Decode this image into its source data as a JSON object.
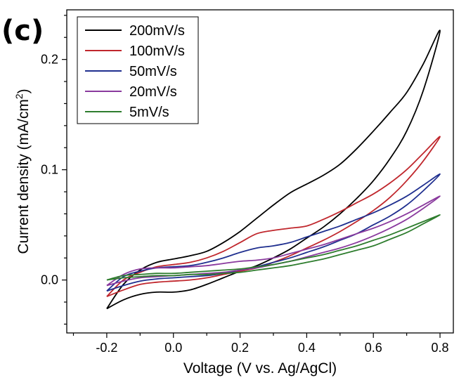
{
  "panel_label": "(c)",
  "chart_data": {
    "type": "line",
    "subtype": "cyclic voltammogram",
    "xlabel": "Voltage (V vs. Ag/AgCl)",
    "ylabel_main": "Current density (mA/cm",
    "ylabel_sup": "2",
    "ylabel_end": ")",
    "xlim": [
      -0.32,
      0.84
    ],
    "ylim": [
      -0.048,
      0.245
    ],
    "xticks": [
      -0.2,
      0.0,
      0.2,
      0.4,
      0.6,
      0.8
    ],
    "xtick_labels": [
      "-0.2",
      "0.0",
      "0.2",
      "0.4",
      "0.6",
      "0.8"
    ],
    "yticks": [
      0.0,
      0.1,
      0.2
    ],
    "ytick_labels": [
      "0.0",
      "0.1",
      "0.2"
    ],
    "grid": false,
    "legend_position": "top-left",
    "series": [
      {
        "name": "200mV/s",
        "color": "#000000",
        "x": [
          -0.2,
          -0.15,
          -0.1,
          -0.05,
          0.0,
          0.05,
          0.1,
          0.15,
          0.2,
          0.25,
          0.3,
          0.35,
          0.4,
          0.45,
          0.5,
          0.55,
          0.6,
          0.65,
          0.7,
          0.75,
          0.8,
          0.75,
          0.7,
          0.65,
          0.6,
          0.55,
          0.5,
          0.45,
          0.4,
          0.35,
          0.3,
          0.25,
          0.2,
          0.15,
          0.1,
          0.05,
          0.0,
          -0.05,
          -0.1,
          -0.15,
          -0.2
        ],
        "y": [
          -0.026,
          -0.018,
          -0.013,
          -0.011,
          -0.011,
          -0.009,
          -0.004,
          0.002,
          0.008,
          0.013,
          0.02,
          0.028,
          0.038,
          0.048,
          0.06,
          0.074,
          0.09,
          0.11,
          0.135,
          0.172,
          0.226,
          0.196,
          0.17,
          0.152,
          0.135,
          0.119,
          0.105,
          0.095,
          0.087,
          0.079,
          0.068,
          0.056,
          0.044,
          0.034,
          0.026,
          0.022,
          0.019,
          0.016,
          0.009,
          -0.004,
          -0.026
        ]
      },
      {
        "name": "100mV/s",
        "color": "#c0272d",
        "x": [
          -0.2,
          -0.15,
          -0.1,
          -0.05,
          0.0,
          0.05,
          0.1,
          0.15,
          0.2,
          0.25,
          0.3,
          0.35,
          0.4,
          0.45,
          0.5,
          0.55,
          0.6,
          0.65,
          0.7,
          0.75,
          0.8,
          0.75,
          0.7,
          0.65,
          0.6,
          0.55,
          0.5,
          0.45,
          0.4,
          0.35,
          0.3,
          0.25,
          0.2,
          0.15,
          0.1,
          0.05,
          0.0,
          -0.05,
          -0.1,
          -0.15,
          -0.2
        ],
        "y": [
          -0.015,
          -0.009,
          -0.004,
          -0.002,
          -0.001,
          0.0,
          0.002,
          0.005,
          0.008,
          0.011,
          0.016,
          0.022,
          0.029,
          0.036,
          0.044,
          0.053,
          0.063,
          0.075,
          0.09,
          0.108,
          0.13,
          0.115,
          0.1,
          0.088,
          0.078,
          0.07,
          0.062,
          0.055,
          0.049,
          0.047,
          0.045,
          0.042,
          0.034,
          0.026,
          0.02,
          0.016,
          0.014,
          0.012,
          0.007,
          0.0,
          -0.015
        ]
      },
      {
        "name": "50mV/s",
        "color": "#1f2f8f",
        "x": [
          -0.2,
          -0.15,
          -0.1,
          -0.05,
          0.0,
          0.05,
          0.1,
          0.15,
          0.2,
          0.25,
          0.3,
          0.35,
          0.4,
          0.45,
          0.5,
          0.55,
          0.6,
          0.65,
          0.7,
          0.75,
          0.8,
          0.75,
          0.7,
          0.65,
          0.6,
          0.55,
          0.5,
          0.45,
          0.4,
          0.35,
          0.3,
          0.25,
          0.2,
          0.15,
          0.1,
          0.05,
          0.0,
          -0.05,
          -0.1,
          -0.15,
          -0.2
        ],
        "y": [
          -0.01,
          -0.005,
          -0.001,
          0.001,
          0.002,
          0.003,
          0.004,
          0.006,
          0.009,
          0.012,
          0.016,
          0.02,
          0.025,
          0.03,
          0.036,
          0.042,
          0.05,
          0.058,
          0.068,
          0.081,
          0.096,
          0.086,
          0.076,
          0.068,
          0.061,
          0.055,
          0.049,
          0.044,
          0.039,
          0.034,
          0.031,
          0.029,
          0.025,
          0.02,
          0.016,
          0.013,
          0.012,
          0.011,
          0.008,
          0.003,
          -0.01
        ]
      },
      {
        "name": "20mV/s",
        "color": "#8a3a9e",
        "x": [
          -0.2,
          -0.15,
          -0.1,
          -0.05,
          0.0,
          0.05,
          0.1,
          0.15,
          0.2,
          0.25,
          0.3,
          0.35,
          0.4,
          0.45,
          0.5,
          0.55,
          0.6,
          0.65,
          0.7,
          0.75,
          0.8,
          0.75,
          0.7,
          0.65,
          0.6,
          0.55,
          0.5,
          0.45,
          0.4,
          0.35,
          0.3,
          0.25,
          0.2,
          0.15,
          0.1,
          0.05,
          0.0,
          -0.05,
          -0.1,
          -0.15,
          -0.2
        ],
        "y": [
          -0.005,
          -0.001,
          0.002,
          0.003,
          0.004,
          0.005,
          0.006,
          0.007,
          0.009,
          0.011,
          0.014,
          0.017,
          0.021,
          0.025,
          0.029,
          0.034,
          0.04,
          0.047,
          0.055,
          0.065,
          0.076,
          0.068,
          0.06,
          0.053,
          0.047,
          0.042,
          0.037,
          0.032,
          0.028,
          0.024,
          0.02,
          0.018,
          0.017,
          0.015,
          0.013,
          0.012,
          0.011,
          0.011,
          0.01,
          0.005,
          -0.005
        ]
      },
      {
        "name": "5mV/s",
        "color": "#2e7d2e",
        "x": [
          -0.2,
          -0.15,
          -0.1,
          -0.05,
          0.0,
          0.05,
          0.1,
          0.15,
          0.2,
          0.25,
          0.3,
          0.35,
          0.4,
          0.45,
          0.5,
          0.55,
          0.6,
          0.65,
          0.7,
          0.75,
          0.8,
          0.75,
          0.7,
          0.65,
          0.6,
          0.55,
          0.5,
          0.45,
          0.4,
          0.35,
          0.3,
          0.25,
          0.2,
          0.15,
          0.1,
          0.05,
          0.0,
          -0.05,
          -0.1,
          -0.15,
          -0.2
        ],
        "y": [
          0.0,
          0.002,
          0.003,
          0.004,
          0.004,
          0.005,
          0.005,
          0.006,
          0.007,
          0.009,
          0.011,
          0.013,
          0.016,
          0.019,
          0.023,
          0.027,
          0.031,
          0.037,
          0.043,
          0.051,
          0.059,
          0.053,
          0.047,
          0.041,
          0.036,
          0.031,
          0.027,
          0.023,
          0.02,
          0.017,
          0.014,
          0.012,
          0.01,
          0.009,
          0.008,
          0.007,
          0.006,
          0.006,
          0.005,
          0.004,
          0.0
        ]
      }
    ]
  }
}
